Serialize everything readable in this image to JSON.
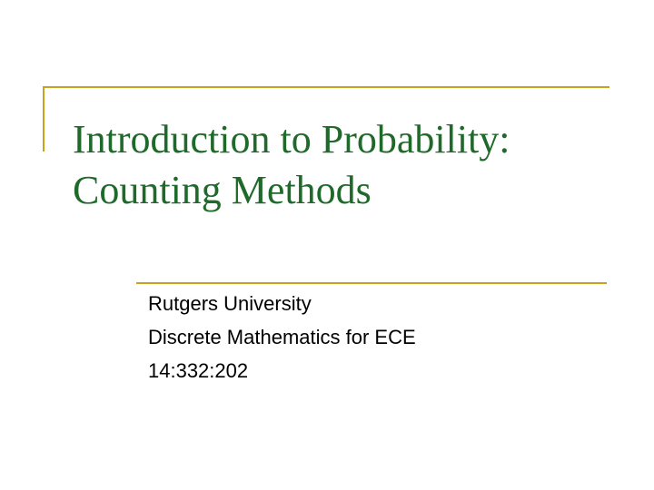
{
  "slide": {
    "title_line1": "Introduction to Probability:",
    "title_line2": "Counting Methods",
    "subtitle": [
      "Rutgers University",
      "Discrete Mathematics for ECE",
      "14:332:202"
    ],
    "colors": {
      "title": "#1f6a2a",
      "accent_rule": "#c8a21c",
      "text": "#000000",
      "background": "#ffffff"
    }
  }
}
